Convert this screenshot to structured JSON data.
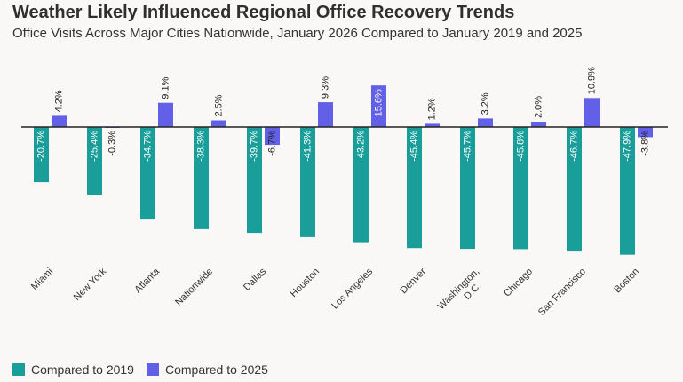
{
  "title": "Weather Likely Influenced Regional Office Recovery Trends",
  "subtitle": "Office Visits Across Major Cities Nationwide, January 2026 Compared to January 2019 and 2025",
  "colors": {
    "s2019": "#1a9e9a",
    "s2025": "#6160e6"
  },
  "chart_data": {
    "type": "bar",
    "title": "Weather Likely Influenced Regional Office Recovery Trends",
    "subtitle": "Office Visits Across Major Cities Nationwide, January 2026 Compared to January 2019 and 2025",
    "categories": [
      "Miami",
      "New York",
      "Atlanta",
      "Nationwide",
      "Dallas",
      "Houston",
      "Los Angeles",
      "Denver",
      "Washington, D.C.",
      "Chicago",
      "San Francisco",
      "Boston"
    ],
    "category_lines": [
      [
        "Miami"
      ],
      [
        "New York"
      ],
      [
        "Atlanta"
      ],
      [
        "Nationwide"
      ],
      [
        "Dallas"
      ],
      [
        "Houston"
      ],
      [
        "Los Angeles"
      ],
      [
        "Denver"
      ],
      [
        "Washington,",
        "D.C."
      ],
      [
        "Chicago"
      ],
      [
        "San Francisco"
      ],
      [
        "Boston"
      ]
    ],
    "series": [
      {
        "name": "Compared to 2019",
        "values": [
          -20.7,
          -25.4,
          -34.7,
          -38.3,
          -39.7,
          -41.3,
          -43.2,
          -45.4,
          -45.7,
          -45.8,
          -46.7,
          -47.9
        ],
        "labels": [
          "-20.7%",
          "-25.4%",
          "-34.7%",
          "-38.3%",
          "-39.7%",
          "-41.3%",
          "-43.2%",
          "-45.4%",
          "-45.7%",
          "-45.8%",
          "-46.7%",
          "-47.9%"
        ]
      },
      {
        "name": "Compared to 2025",
        "values": [
          4.2,
          -0.3,
          9.1,
          2.5,
          -6.7,
          9.3,
          15.6,
          1.2,
          3.2,
          2.0,
          10.9,
          -3.8
        ],
        "labels": [
          "4.2%",
          "-0.3%",
          "9.1%",
          "2.5%",
          "-6.7%",
          "9.3%",
          "15.6%",
          "1.2%",
          "3.2%",
          "2.0%",
          "10.9%",
          "-3.8%"
        ]
      }
    ],
    "ylim": [
      -48,
      16
    ],
    "grid": false,
    "legend_position": "bottom-left"
  }
}
